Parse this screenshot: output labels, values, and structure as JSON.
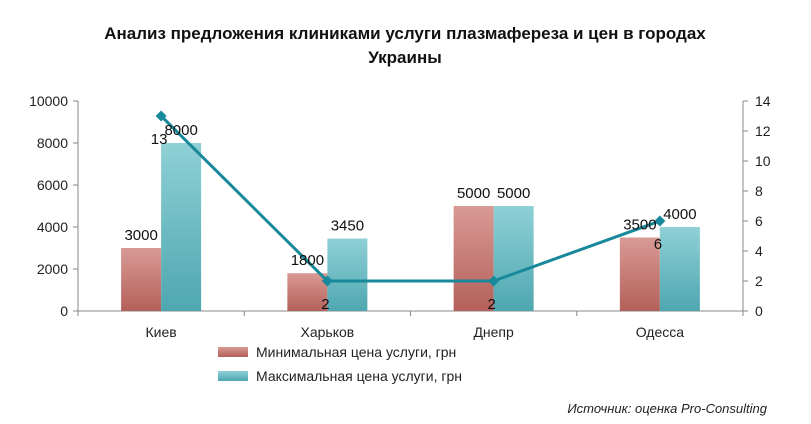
{
  "chart_data": {
    "type": "bar",
    "title_line1": "Анализ предложения клиниками услуги плазмафереза и цен в городах",
    "title_line2": "Украины",
    "categories": [
      "Киев",
      "Харьков",
      "Днепр",
      "Одесса"
    ],
    "series": [
      {
        "name": "Минимальная цена услуги,  грн",
        "type": "bar",
        "axis": "left",
        "color": "#c0716b",
        "values": [
          3000,
          1800,
          5000,
          3500
        ]
      },
      {
        "name": "Максимальная цена услуги, грн",
        "type": "bar",
        "axis": "left",
        "color": "#5fb5bd",
        "values": [
          8000,
          3450,
          5000,
          4000
        ]
      },
      {
        "type": "line",
        "axis": "right",
        "color": "#17899a",
        "values": [
          13,
          2,
          2,
          6
        ]
      }
    ],
    "y_left": {
      "min": 0,
      "max": 10000,
      "ticks": [
        "0",
        "2000",
        "4000",
        "6000",
        "8000",
        "10000"
      ]
    },
    "y_right": {
      "min": 0,
      "max": 14,
      "ticks": [
        "0",
        "2",
        "4",
        "6",
        "8",
        "10",
        "12",
        "14"
      ]
    },
    "grid": false,
    "legend_position": "bottom",
    "source": "Источник: оценка Pro-Consulting"
  }
}
